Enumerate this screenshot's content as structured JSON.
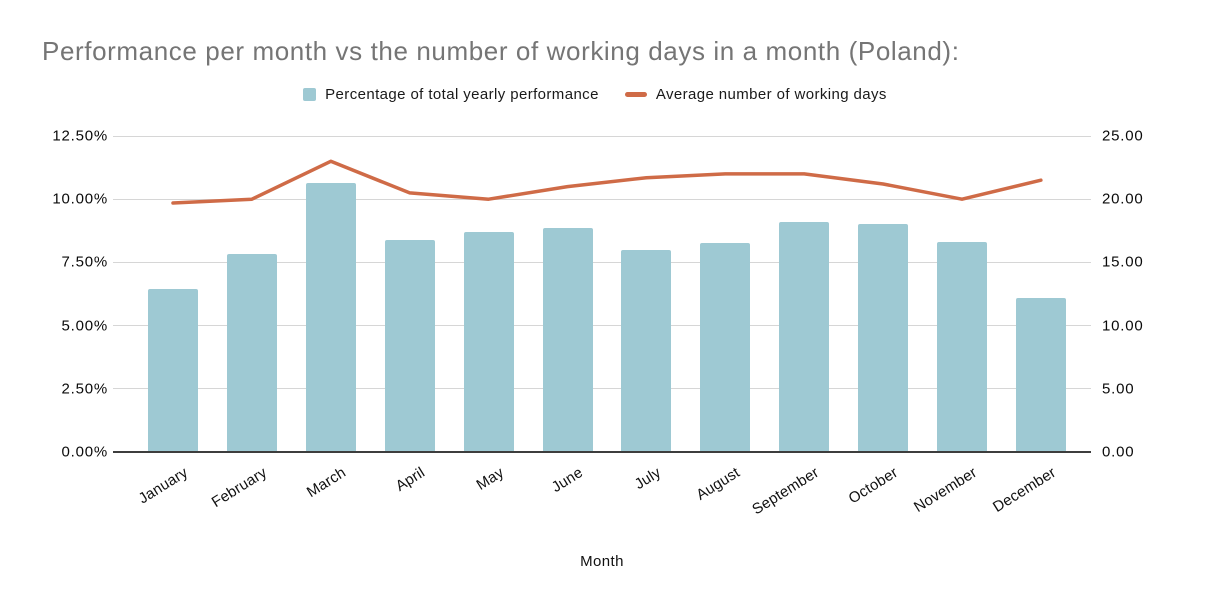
{
  "colors": {
    "bar_fill": "#9ec9d3",
    "line_stroke": "#cf6b47",
    "title_text": "#757575",
    "axis_text": "#0a0a0a",
    "gridline": "#d6d6d6",
    "baseline": "#3d3d3d"
  },
  "chart_data": {
    "type": "bar",
    "title": "Performance per month vs the number of working days in a month (Poland):",
    "xlabel": "Month",
    "categories": [
      "January",
      "February",
      "March",
      "April",
      "May",
      "June",
      "July",
      "August",
      "September",
      "October",
      "November",
      "December"
    ],
    "series": [
      {
        "name": "Percentage of total yearly performance",
        "type": "bar",
        "axis": "left",
        "color": "#9ec9d3",
        "values": [
          6.45,
          7.85,
          10.65,
          8.4,
          8.7,
          8.85,
          8.0,
          8.25,
          9.1,
          9.0,
          8.3,
          6.1
        ]
      },
      {
        "name": "Average number of working days",
        "type": "line",
        "axis": "right",
        "color": "#cf6b47",
        "values": [
          19.7,
          20.0,
          23.0,
          20.5,
          20.0,
          21.0,
          21.7,
          22.0,
          22.0,
          21.2,
          20.0,
          21.5
        ]
      }
    ],
    "axes": {
      "left": {
        "range": [
          0,
          12.5
        ],
        "ticks": [
          "0.00%",
          "2.50%",
          "5.00%",
          "7.50%",
          "10.00%",
          "12.50%"
        ]
      },
      "right": {
        "range": [
          0,
          25
        ],
        "ticks": [
          "0.00",
          "5.00",
          "10.00",
          "15.00",
          "20.00",
          "25.00"
        ]
      }
    },
    "grid": true,
    "legend_position": "top"
  }
}
